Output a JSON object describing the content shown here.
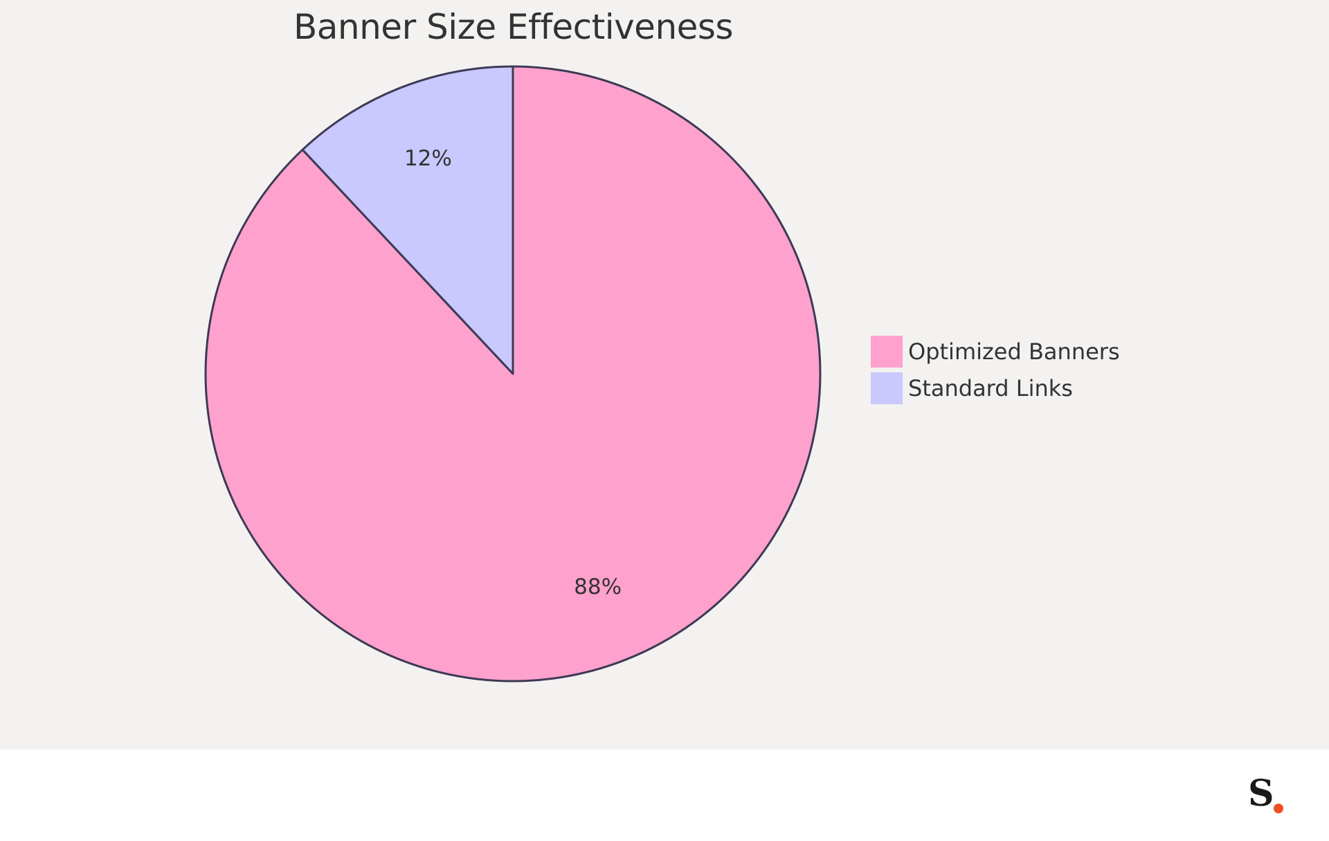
{
  "chart_data": {
    "type": "pie",
    "title": "Banner Size Effectiveness",
    "series": [
      {
        "name": "Optimized Banners",
        "value": 88,
        "label": "88%",
        "color": "#ffa1cd"
      },
      {
        "name": "Standard Links",
        "value": 12,
        "label": "12%",
        "color": "#c9c8ff"
      }
    ],
    "legend_position": "right",
    "stroke_color": "#3d3a55"
  },
  "brand": {
    "logo_text": "S",
    "dot_color": "#f04e23"
  }
}
